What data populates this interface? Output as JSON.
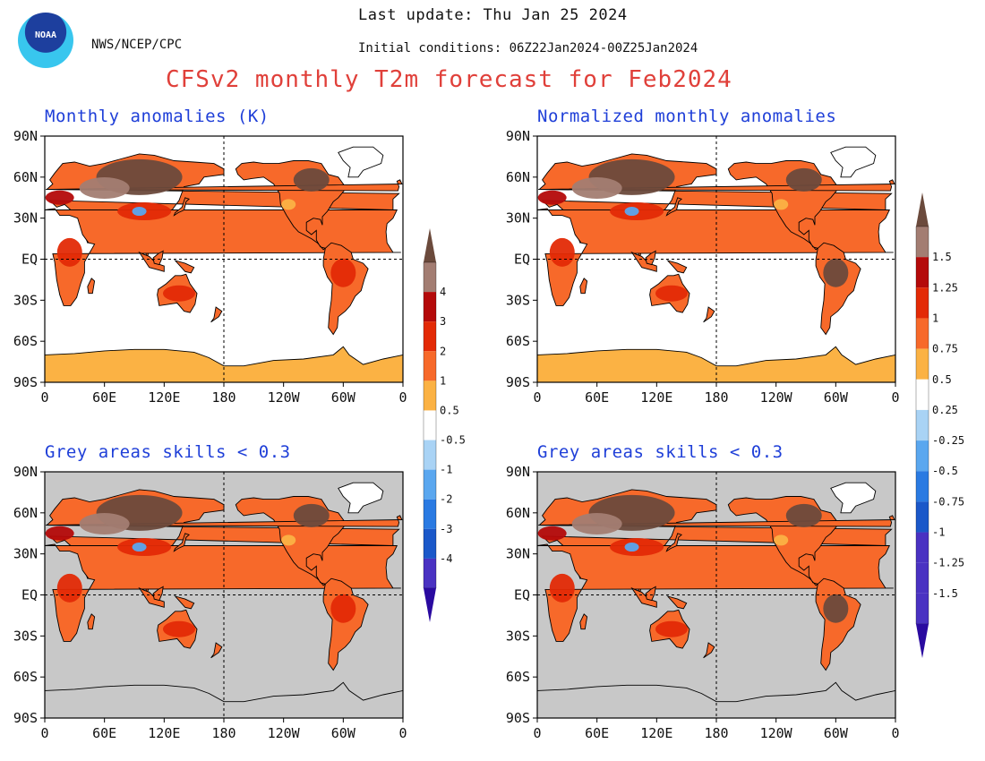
{
  "header": {
    "agency": "NWS/NCEP/CPC",
    "logo_text": "NOAA",
    "last_update": "Last update: Thu Jan 25 2024",
    "initial_conditions": "Initial conditions: 06Z22Jan2024-00Z25Jan2024",
    "title": "CFSv2 monthly T2m forecast for Feb2024"
  },
  "axes": {
    "lat_labels": [
      "90N",
      "60N",
      "30N",
      "EQ",
      "30S",
      "60S",
      "90S"
    ],
    "lon_labels": [
      "0",
      "60E",
      "120E",
      "180",
      "120W",
      "60W",
      "0"
    ]
  },
  "panels": [
    {
      "id": "anom",
      "title": "Monthly anomalies (K)",
      "grey": false
    },
    {
      "id": "norm",
      "title": "Normalized monthly anomalies",
      "grey": false
    },
    {
      "id": "anom-skill",
      "title": "Grey areas skills < 0.3",
      "grey": true
    },
    {
      "id": "norm-skill",
      "title": "Grey areas skills < 0.3",
      "grey": true
    }
  ],
  "colorbars": {
    "anomalies": {
      "labels": [
        "4",
        "3",
        "2",
        "1",
        "0.5",
        "-0.5",
        "-1",
        "-2",
        "-3",
        "-4"
      ]
    },
    "normalized": {
      "labels": [
        "1.5",
        "1.25",
        "1",
        "0.75",
        "0.5",
        "0.25",
        "-0.25",
        "-0.5",
        "-0.75",
        "-1",
        "-1.25",
        "-1.5"
      ]
    },
    "colors": {
      "c4": "#6b4a3c",
      "c3": "#a37d72",
      "c2": "#b40a0a",
      "c1": "#e32a06",
      "c05": "#f7692a",
      "c0": "#fbb244",
      "neutral": "#ffffff",
      "n05": "#a9d3f5",
      "n1": "#5aa7ef",
      "n2": "#2a7ae2",
      "n3": "#1b58c9",
      "n4": "#4a32c2",
      "n5": "#2a0aa0"
    },
    "grey": "#c8c8c8"
  }
}
